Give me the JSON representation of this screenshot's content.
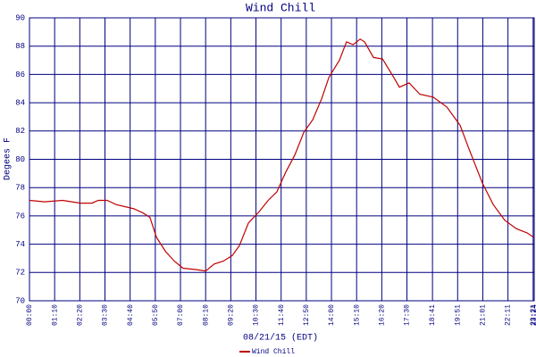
{
  "chart_data": {
    "type": "line",
    "title": "Wind Chill",
    "ylabel": "Degees F",
    "xlabel": "08/21/15 (EDT)",
    "x": [
      0,
      42,
      92,
      142,
      174,
      191,
      216,
      241,
      291,
      316,
      335,
      353,
      378,
      403,
      427,
      465,
      490,
      514,
      539,
      564,
      584,
      609,
      639,
      664,
      688,
      713,
      738,
      763,
      788,
      813,
      833,
      862,
      882,
      900,
      920,
      932,
      957,
      982,
      1011,
      1029,
      1056,
      1086,
      1123,
      1161,
      1198,
      1223,
      1260,
      1290,
      1322,
      1354,
      1384,
      1402
    ],
    "series": [
      {
        "name": "Wind Chill",
        "color": "#c00000",
        "values": [
          77.1,
          77.0,
          77.1,
          76.9,
          76.9,
          77.1,
          77.1,
          76.8,
          76.5,
          76.2,
          75.9,
          74.5,
          73.5,
          72.8,
          72.3,
          72.2,
          72.1,
          72.6,
          72.8,
          73.2,
          73.9,
          75.5,
          76.3,
          77.1,
          77.7,
          79.1,
          80.3,
          81.9,
          82.8,
          84.3,
          85.8,
          87.0,
          88.3,
          88.1,
          88.5,
          88.3,
          87.2,
          87.1,
          85.9,
          85.1,
          85.4,
          84.6,
          84.4,
          83.7,
          82.4,
          80.7,
          78.3,
          76.8,
          75.7,
          75.1,
          74.8,
          74.5
        ]
      }
    ],
    "xlim": [
      0,
      1404
    ],
    "xticks": [
      {
        "value": 0,
        "label": "00:00"
      },
      {
        "value": 70,
        "label": "01:10"
      },
      {
        "value": 140,
        "label": "02:20"
      },
      {
        "value": 210,
        "label": "03:30"
      },
      {
        "value": 280,
        "label": "04:40"
      },
      {
        "value": 350,
        "label": "05:50"
      },
      {
        "value": 420,
        "label": "07:00"
      },
      {
        "value": 490,
        "label": "08:10"
      },
      {
        "value": 560,
        "label": "09:20"
      },
      {
        "value": 630,
        "label": "10:30"
      },
      {
        "value": 700,
        "label": "11:40"
      },
      {
        "value": 770,
        "label": "12:50"
      },
      {
        "value": 840,
        "label": "14:00"
      },
      {
        "value": 910,
        "label": "15:10"
      },
      {
        "value": 980,
        "label": "16:20"
      },
      {
        "value": 1050,
        "label": "17:30"
      },
      {
        "value": 1121,
        "label": "18:41"
      },
      {
        "value": 1191,
        "label": "19:51"
      },
      {
        "value": 1261,
        "label": "21:01"
      },
      {
        "value": 1331,
        "label": "22:11"
      },
      {
        "value": 1401,
        "label": "23:21"
      },
      {
        "value": 1404,
        "label": "23:24"
      }
    ],
    "ylim": [
      70,
      90
    ],
    "yticks": [
      70,
      72,
      74,
      76,
      78,
      80,
      82,
      84,
      86,
      88,
      90
    ],
    "grid": true
  }
}
